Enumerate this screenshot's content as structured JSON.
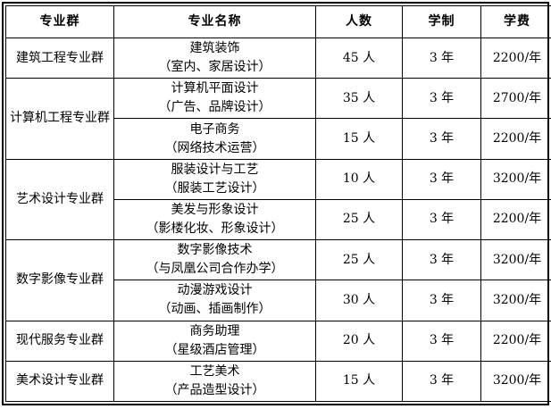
{
  "table": {
    "headers": [
      "专业群",
      "专业名称",
      "人数",
      "学制",
      "学费"
    ],
    "groups": [
      {
        "group": "建筑工程专业群",
        "rows": [
          {
            "name_lines": [
              "建筑装饰",
              "（室内、家居设计）"
            ],
            "count": "45 人",
            "duration": "3 年",
            "fee": "2200/年"
          }
        ]
      },
      {
        "group": "计算机工程专业群",
        "rows": [
          {
            "name_lines": [
              "计算机平面设计",
              "（广告、品牌设计）"
            ],
            "count": "35 人",
            "duration": "3 年",
            "fee": "2700/年"
          },
          {
            "name_lines": [
              "电子商务",
              "（网络技术运营）"
            ],
            "count": "15 人",
            "duration": "3 年",
            "fee": "2200/年"
          }
        ]
      },
      {
        "group": "艺术设计专业群",
        "rows": [
          {
            "name_lines": [
              "服装设计与工艺",
              "（服装工艺设计）"
            ],
            "count": "10 人",
            "duration": "3 年",
            "fee": "3200/年"
          },
          {
            "name_lines": [
              "美发与形象设计",
              "（影楼化妆、形象设计）"
            ],
            "count": "25 人",
            "duration": "3 年",
            "fee": "2200/年"
          }
        ]
      },
      {
        "group": "数字影像专业群",
        "rows": [
          {
            "name_lines": [
              "数字影像技术",
              "（与凤凰公司合作办学）"
            ],
            "count": "25 人",
            "duration": "3 年",
            "fee": "3200/年"
          },
          {
            "name_lines": [
              "动漫游戏设计",
              "（动画、插画制作）"
            ],
            "count": "30 人",
            "duration": "3 年",
            "fee": "3200/年"
          }
        ]
      },
      {
        "group": "现代服务专业群",
        "rows": [
          {
            "name_lines": [
              "商务助理",
              "（星级酒店管理）"
            ],
            "count": "20 人",
            "duration": "3 年",
            "fee": "2200/年"
          }
        ]
      },
      {
        "group": "美术设计专业群",
        "rows": [
          {
            "name_lines": [
              "工艺美术",
              "（产品造型设计）"
            ],
            "count": "15 人",
            "duration": "3 年",
            "fee": "3200/年"
          }
        ]
      }
    ]
  }
}
